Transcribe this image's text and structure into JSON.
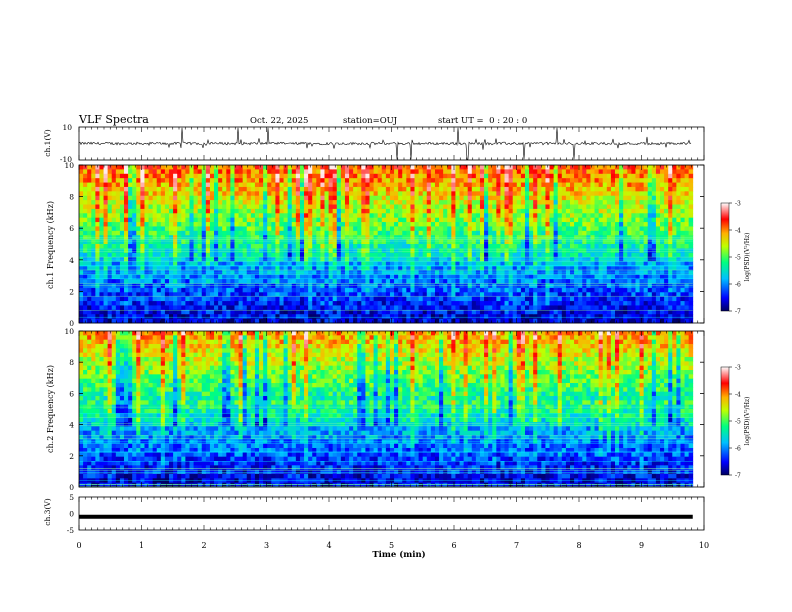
{
  "header": {
    "title": "VLF Spectra",
    "date": "Oct. 22, 2025",
    "station": "station=OUJ",
    "start_ut": "start UT =  0 : 20 : 0"
  },
  "chart_data": [
    {
      "type": "line",
      "panel": "ch1-waveform",
      "ylabel": "ch.1(V)",
      "ylim": [
        -10,
        10
      ],
      "y_ticks": [
        "10",
        "-10"
      ],
      "xlim": [
        0,
        10
      ],
      "baseline": 0,
      "color": "#000000"
    },
    {
      "type": "heatmap",
      "panel": "ch1-spectrogram",
      "ylabel": "ch.1 Frequency (kHz)",
      "ylim": [
        0,
        10
      ],
      "y_ticks": [
        "0",
        "2",
        "4",
        "6",
        "8",
        "10"
      ],
      "xlim": [
        0,
        9.82
      ],
      "colorbar": {
        "label": "log(PSD)(V²/Hz)",
        "ticks": [
          "-3",
          "-4",
          "-5",
          "-6",
          "-7"
        ],
        "range": [
          -7,
          -3
        ]
      }
    },
    {
      "type": "heatmap",
      "panel": "ch2-spectrogram",
      "ylabel": "ch.2 Frequency (kHz)",
      "ylim": [
        0,
        10
      ],
      "y_ticks": [
        "0",
        "2",
        "4",
        "6",
        "8",
        "10"
      ],
      "xlim": [
        0,
        9.82
      ],
      "colorbar": {
        "label": "log(PSD)(V²/Hz)",
        "ticks": [
          "-3",
          "-4",
          "-5",
          "-6",
          "-7"
        ],
        "range": [
          -7,
          -3
        ]
      }
    },
    {
      "type": "line",
      "panel": "ch3-waveform",
      "ylabel": "ch.3(V)",
      "ylim": [
        -5,
        5
      ],
      "y_ticks": [
        "5",
        "0",
        "-5"
      ],
      "xlim": [
        0,
        9.82
      ],
      "values": [
        -1,
        -1
      ],
      "x": [
        0,
        9.82
      ],
      "color": "#000000"
    }
  ],
  "x_axis": {
    "label": "Time (min)",
    "ticks": [
      "0",
      "1",
      "2",
      "3",
      "4",
      "5",
      "6",
      "7",
      "8",
      "9",
      "10"
    ],
    "range": [
      0,
      10
    ]
  },
  "colors": {
    "jet": [
      "#00007f",
      "#0000ff",
      "#007fff",
      "#00ffff",
      "#7fff7f",
      "#ffff00",
      "#ff7f00",
      "#ff0000",
      "#ffffff"
    ]
  }
}
